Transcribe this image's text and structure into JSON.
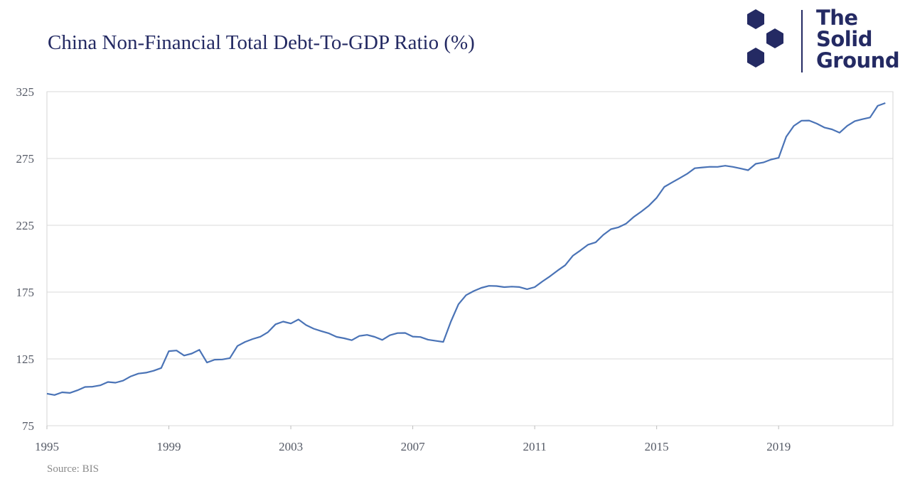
{
  "chart_data": {
    "type": "line",
    "title": "China Non-Financial Total Debt-To-GDP Ratio (%)",
    "source": "Source: BIS",
    "ylim": [
      75,
      325
    ],
    "yticks": [
      75,
      125,
      175,
      225,
      275,
      325
    ],
    "xlim": [
      1995.0,
      2022.75
    ],
    "xticks": [
      1995,
      1999,
      2003,
      2007,
      2011,
      2015,
      2019
    ],
    "grid": "horizontal",
    "line_color": "#4a73b6",
    "series": [
      {
        "x": [
          1995.0,
          1995.25,
          1995.5,
          1995.75,
          1996.0,
          1996.25,
          1996.5,
          1996.75,
          1997.0,
          1997.25,
          1997.5,
          1997.75,
          1998.0,
          1998.25,
          1998.5,
          1998.75,
          1999.0,
          1999.25,
          1999.5,
          1999.75,
          2000.0,
          2000.25,
          2000.5,
          2000.75,
          2001.0,
          2001.25,
          2001.5,
          2001.75,
          2002.0,
          2002.25,
          2002.5,
          2002.75,
          2003.0,
          2003.25,
          2003.5,
          2003.75,
          2004.0,
          2004.25,
          2004.5,
          2004.75,
          2005.0,
          2005.25,
          2005.5,
          2005.75,
          2006.0,
          2006.25,
          2006.5,
          2006.75,
          2007.0,
          2007.25,
          2007.5,
          2007.75,
          2008.0,
          2008.25,
          2008.5,
          2008.75,
          2009.0,
          2009.25,
          2009.5,
          2009.75,
          2010.0,
          2010.25,
          2010.5,
          2010.75,
          2011.0,
          2011.25,
          2011.5,
          2011.75,
          2012.0,
          2012.25,
          2012.5,
          2012.75,
          2013.0,
          2013.25,
          2013.5,
          2013.75,
          2014.0,
          2014.25,
          2014.5,
          2014.75,
          2015.0,
          2015.25,
          2015.5,
          2015.75,
          2016.0,
          2016.25,
          2016.5,
          2016.75,
          2017.0,
          2017.25,
          2017.5,
          2017.75,
          2018.0,
          2018.25,
          2018.5,
          2018.75,
          2019.0,
          2019.25,
          2019.5,
          2019.75,
          2020.0,
          2020.25,
          2020.5,
          2020.75,
          2021.0,
          2021.25,
          2021.5,
          2021.75,
          2022.0,
          2022.25,
          2022.5
        ],
        "values": [
          99,
          98,
          100,
          99.5,
          101.5,
          104,
          104.2,
          105.2,
          107.7,
          107.2,
          108.7,
          111.9,
          114,
          114.7,
          116.1,
          118.2,
          130.8,
          131.3,
          127.5,
          129,
          131.8,
          122.3,
          124.4,
          124.6,
          125.6,
          134.7,
          137.7,
          139.9,
          141.6,
          145,
          150.9,
          152.9,
          151.5,
          154.5,
          150.3,
          147.6,
          145.8,
          144.1,
          141.5,
          140.4,
          139,
          142.2,
          143,
          141.5,
          139.2,
          142.7,
          144.3,
          144.4,
          141.7,
          141.4,
          139.4,
          138.5,
          137.7,
          152.9,
          165.9,
          172.7,
          175.8,
          178.2,
          179.7,
          179.5,
          178.7,
          179.1,
          178.8,
          177.2,
          178.7,
          182.9,
          186.8,
          191.1,
          195.1,
          202.2,
          206.2,
          210.5,
          212.3,
          217.8,
          222.1,
          223.5,
          226.3,
          231.3,
          235.3,
          239.8,
          245.6,
          253.7,
          257,
          260.2,
          263.5,
          267.7,
          268.3,
          268.8,
          268.7,
          269.6,
          268.7,
          267.5,
          266.2,
          271,
          272,
          274.2,
          275.5,
          291.3,
          299.4,
          303.3,
          303.4,
          301.1,
          298.2,
          296.8,
          294.3,
          299.4,
          303,
          304.4,
          305.7,
          314.4,
          316.5
        ]
      }
    ]
  },
  "logo": {
    "line1": "The",
    "line2": "Solid",
    "line3": "Ground",
    "color": "#242a63"
  }
}
